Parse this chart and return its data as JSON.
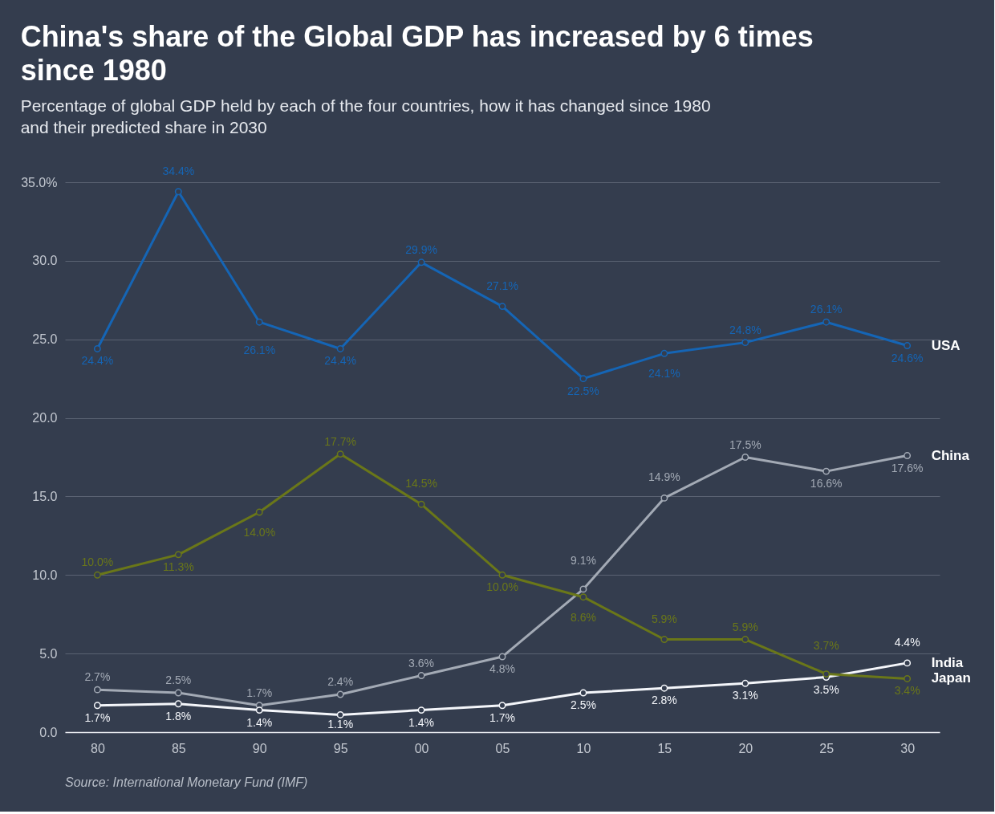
{
  "chart_data": {
    "type": "line",
    "title": "China's share of the Global GDP has increased by 6 times since 1980",
    "subtitle": "Percentage of global GDP held by each of the four countries, how it has changed since 1980 and their predicted share in 2030",
    "x": [
      1980,
      1985,
      1990,
      1995,
      2000,
      2005,
      2010,
      2015,
      2020,
      2025,
      2030
    ],
    "xlim": [
      1978,
      2032
    ],
    "xticks": [
      {
        "value": 1980,
        "label": "80"
      },
      {
        "value": 1985,
        "label": "85"
      },
      {
        "value": 1990,
        "label": "90"
      },
      {
        "value": 1995,
        "label": "95"
      },
      {
        "value": 2000,
        "label": "00"
      },
      {
        "value": 2005,
        "label": "05"
      },
      {
        "value": 2010,
        "label": "10"
      },
      {
        "value": 2015,
        "label": "15"
      },
      {
        "value": 2020,
        "label": "20"
      },
      {
        "value": 2025,
        "label": "25"
      },
      {
        "value": 2030,
        "label": "30"
      }
    ],
    "ylim": [
      0,
      35
    ],
    "yticks": [
      {
        "value": 0,
        "label": "0.0"
      },
      {
        "value": 5,
        "label": "5.0"
      },
      {
        "value": 10,
        "label": "10.0"
      },
      {
        "value": 15,
        "label": "15.0"
      },
      {
        "value": 20,
        "label": "20.0"
      },
      {
        "value": 25,
        "label": "25.0"
      },
      {
        "value": 30,
        "label": "30.0"
      },
      {
        "value": 35,
        "label": "35.0%"
      }
    ],
    "grid": "y",
    "legend": false,
    "marker": "circle",
    "annotations": [
      "Source: International Monetary Fund (IMF)"
    ],
    "series": [
      {
        "name": "USA",
        "color": "#1565b5",
        "values": [
          24.4,
          34.4,
          26.1,
          24.4,
          29.9,
          27.1,
          22.5,
          24.1,
          24.8,
          26.1,
          24.6
        ],
        "value_labels": [
          "24.4%",
          "34.4%",
          "26.1%",
          "24.4%",
          "29.9%",
          "27.1%",
          "22.5%",
          "24.1%",
          "24.8%",
          "26.1%",
          "24.6%"
        ]
      },
      {
        "name": "China",
        "color": "#a3aab5",
        "values": [
          2.7,
          2.5,
          1.7,
          2.4,
          3.6,
          4.8,
          9.1,
          14.9,
          17.5,
          16.6,
          17.6
        ],
        "value_labels": [
          "2.7%",
          "2.5%",
          "1.7%",
          "2.4%",
          "3.6%",
          "4.8%",
          "9.1%",
          "14.9%",
          "17.5%",
          "16.6%",
          "17.6%"
        ]
      },
      {
        "name": "India",
        "color": "#f4f6fa",
        "values": [
          1.7,
          1.8,
          1.4,
          1.1,
          1.4,
          1.7,
          2.5,
          2.8,
          3.1,
          3.5,
          4.4
        ],
        "value_labels": [
          "1.7%",
          "1.8%",
          "1.4%",
          "1.1%",
          "1.4%",
          "1.7%",
          "2.5%",
          "2.8%",
          "3.1%",
          "3.5%",
          "4.4%"
        ]
      },
      {
        "name": "Japan",
        "color": "#6a7719",
        "values": [
          10.0,
          11.3,
          14.0,
          17.7,
          14.5,
          10.0,
          8.6,
          5.9,
          5.9,
          3.7,
          3.4
        ],
        "value_labels": [
          "10.0%",
          "11.3%",
          "14.0%",
          "17.7%",
          "14.5%",
          "10.0%",
          "8.6%",
          "5.9%",
          "5.9%",
          "3.7%",
          "3.4%"
        ]
      }
    ]
  }
}
